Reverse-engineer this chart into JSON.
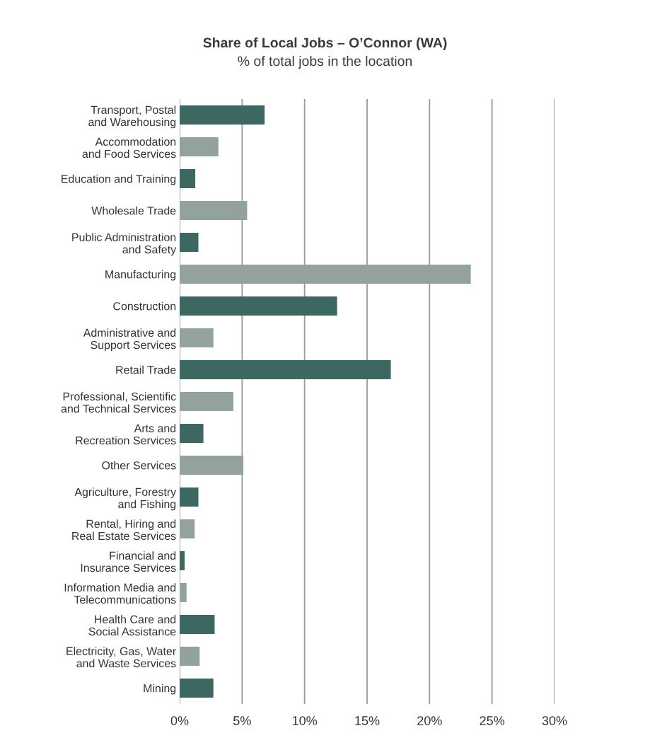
{
  "chart_data": {
    "type": "bar",
    "orientation": "horizontal",
    "title": "Share of Local Jobs – O’Connor (WA)",
    "subtitle": "% of total jobs in the location",
    "categories": [
      "Transport, Postal\nand Warehousing",
      "Accommodation\nand Food Services",
      "Education and Training",
      "Wholesale Trade",
      "Public Administration\nand Safety",
      "Manufacturing",
      "Construction",
      "Administrative and\nSupport Services",
      "Retail Trade",
      "Professional, Scientific\nand Technical Services",
      "Arts and\nRecreation Services",
      "Other Services",
      "Agriculture, Forestry\nand Fishing",
      "Rental, Hiring and\nReal Estate Services",
      "Financial and\nInsurance Services",
      "Information Media and\nTelecommunications",
      "Health Care and\nSocial Assistance",
      "Electricity, Gas, Water\nand Waste Services",
      "Mining"
    ],
    "values": [
      6.8,
      3.1,
      1.25,
      5.4,
      1.5,
      23.3,
      12.6,
      2.7,
      16.9,
      4.3,
      1.9,
      5.1,
      1.5,
      1.2,
      0.4,
      0.55,
      2.8,
      1.6,
      2.7
    ],
    "colors": [
      "#3d6861",
      "#93a29d",
      "#3d6861",
      "#93a29d",
      "#3d6861",
      "#93a29d",
      "#3d6861",
      "#93a29d",
      "#3d6861",
      "#93a29d",
      "#3d6861",
      "#93a29d",
      "#3d6861",
      "#93a29d",
      "#3d6861",
      "#93a29d",
      "#3d6861",
      "#93a29d",
      "#3d6861"
    ],
    "xlim": [
      0,
      30
    ],
    "xticks": [
      {
        "value": 0,
        "label": "0%"
      },
      {
        "value": 5,
        "label": "5%"
      },
      {
        "value": 10,
        "label": "10%"
      },
      {
        "value": 15,
        "label": "15%"
      },
      {
        "value": 20,
        "label": "20%"
      },
      {
        "value": 25,
        "label": "25%"
      },
      {
        "value": 30,
        "label": "30%"
      }
    ],
    "grid": "x",
    "legend": false
  }
}
